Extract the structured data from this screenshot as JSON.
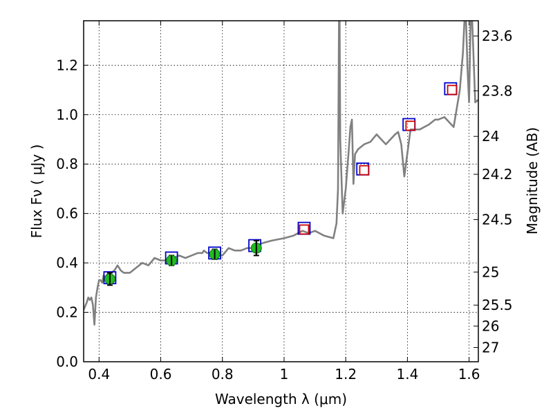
{
  "chart_data": {
    "type": "scatter",
    "title": "",
    "xlabel": "Wavelength  λ (μm)",
    "ylabel": "Flux  Fν  ( μJy )",
    "ylabel_right": "Magnitude (AB)",
    "xlim": [
      0.35,
      1.63
    ],
    "ylim": [
      0.0,
      1.38
    ],
    "grid": true,
    "x_ticks": [
      0.4,
      0.6,
      0.8,
      1.0,
      1.2,
      1.4,
      1.6
    ],
    "x_tick_labels": [
      "0.4",
      "0.6",
      "0.8",
      "1",
      "1.2",
      "1.4",
      "1.6"
    ],
    "y_ticks": [
      0.0,
      0.2,
      0.4,
      0.6,
      0.8,
      1.0,
      1.2
    ],
    "y_tick_labels": [
      "0.0",
      "0.2",
      "0.4",
      "0.6",
      "0.8",
      "1.0",
      "1.2"
    ],
    "right_ticks": [
      {
        "label": "23.6",
        "flux": 1.3183
      },
      {
        "label": "23.8",
        "flux": 1.0965
      },
      {
        "label": "24",
        "flux": 0.912
      },
      {
        "label": "24.2",
        "flux": 0.7586
      },
      {
        "label": "24.5",
        "flux": 0.5754
      },
      {
        "label": "25",
        "flux": 0.3631
      },
      {
        "label": "25.5",
        "flux": 0.2291
      },
      {
        "label": "26",
        "flux": 0.1445
      },
      {
        "label": "27",
        "flux": 0.0575
      }
    ],
    "series": [
      {
        "style": "line",
        "color": "#808080",
        "x": [
          0.35,
          0.36,
          0.365,
          0.37,
          0.375,
          0.38,
          0.385,
          0.39,
          0.395,
          0.4,
          0.405,
          0.41,
          0.415,
          0.42,
          0.425,
          0.43,
          0.44,
          0.45,
          0.46,
          0.47,
          0.48,
          0.5,
          0.52,
          0.54,
          0.56,
          0.58,
          0.6,
          0.62,
          0.64,
          0.66,
          0.68,
          0.7,
          0.72,
          0.73,
          0.735,
          0.74,
          0.75,
          0.77,
          0.8,
          0.82,
          0.84,
          0.86,
          0.88,
          0.9,
          0.93,
          0.96,
          1.0,
          1.03,
          1.06,
          1.08,
          1.1,
          1.13,
          1.16,
          1.17,
          1.175,
          1.178,
          1.18,
          1.182,
          1.19,
          1.2,
          1.21,
          1.215,
          1.22,
          1.225,
          1.23,
          1.24,
          1.26,
          1.28,
          1.3,
          1.33,
          1.36,
          1.37,
          1.38,
          1.39,
          1.41,
          1.44,
          1.47,
          1.49,
          1.5,
          1.52,
          1.55,
          1.57,
          1.58,
          1.585,
          1.59,
          1.595,
          1.6,
          1.605,
          1.61,
          1.62,
          1.63
        ],
        "y": [
          0.21,
          0.24,
          0.26,
          0.25,
          0.26,
          0.23,
          0.15,
          0.26,
          0.3,
          0.33,
          0.33,
          0.32,
          0.35,
          0.34,
          0.35,
          0.36,
          0.36,
          0.37,
          0.39,
          0.37,
          0.36,
          0.36,
          0.38,
          0.4,
          0.39,
          0.42,
          0.41,
          0.41,
          0.42,
          0.43,
          0.42,
          0.43,
          0.44,
          0.44,
          0.44,
          0.45,
          0.44,
          0.44,
          0.43,
          0.46,
          0.45,
          0.45,
          0.46,
          0.46,
          0.48,
          0.49,
          0.5,
          0.51,
          0.53,
          0.52,
          0.53,
          0.51,
          0.5,
          0.56,
          0.7,
          1.38,
          1.38,
          0.9,
          0.6,
          0.7,
          0.86,
          0.95,
          0.98,
          0.72,
          0.84,
          0.86,
          0.88,
          0.89,
          0.92,
          0.88,
          0.92,
          0.93,
          0.88,
          0.75,
          0.94,
          0.94,
          0.96,
          0.98,
          0.98,
          0.99,
          0.95,
          1.1,
          1.25,
          1.38,
          1.38,
          1.18,
          1.05,
          1.38,
          1.38,
          1.05,
          1.06
        ]
      },
      {
        "style": "open-square",
        "edgecolor": "#0000cc",
        "x": [
          0.435,
          0.635,
          0.775,
          0.905,
          1.065,
          1.255,
          1.405,
          1.54
        ],
        "y": [
          0.34,
          0.42,
          0.44,
          0.47,
          0.54,
          0.78,
          0.96,
          1.105
        ]
      },
      {
        "style": "open-square",
        "edgecolor": "#cc0000",
        "x": [
          1.065,
          1.26,
          1.41,
          1.545
        ],
        "y": [
          0.535,
          0.775,
          0.955,
          1.1
        ]
      },
      {
        "style": "filled-circle-errorbar",
        "color": "#22bb22",
        "x": [
          0.435,
          0.635,
          0.775,
          0.91
        ],
        "y": [
          0.335,
          0.41,
          0.435,
          0.46
        ],
        "err": [
          0.025,
          0.02,
          0.02,
          0.03
        ]
      }
    ]
  }
}
